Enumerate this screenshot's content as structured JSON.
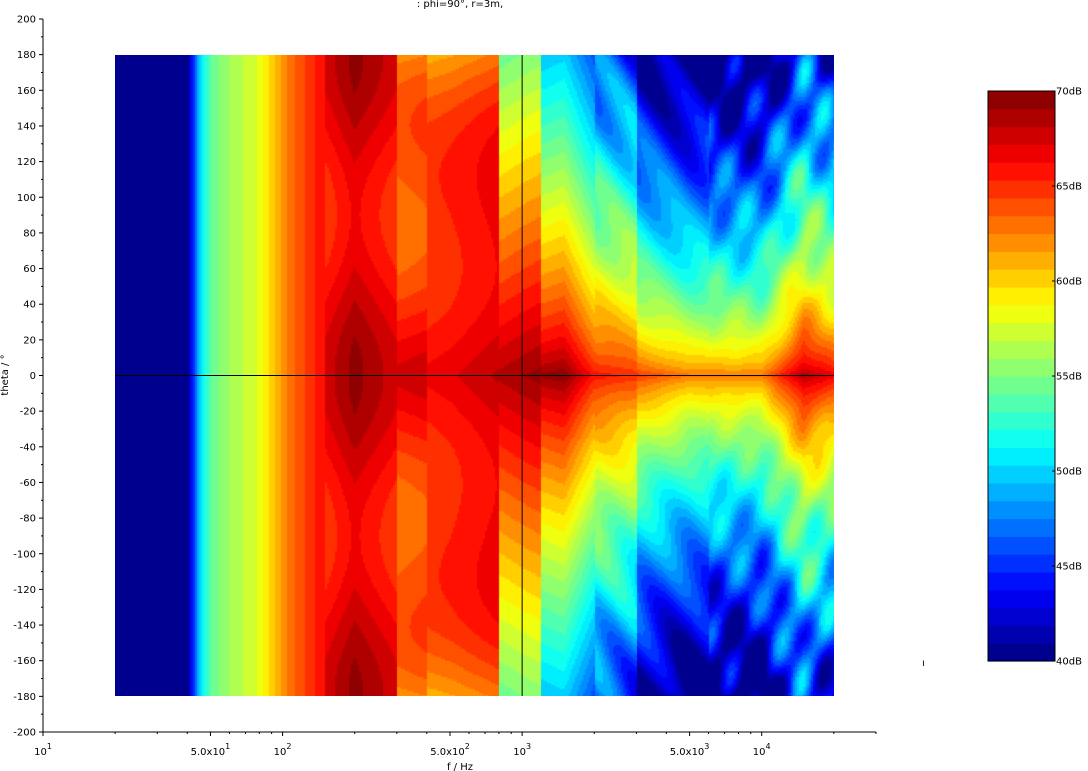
{
  "chart_data": {
    "type": "heatmap",
    "title": ": phi=90°, r=3m,",
    "xlabel": "f / Hz",
    "ylabel": "theta / °",
    "x_scale": "log",
    "xlim": [
      10,
      30000
    ],
    "ylim": [
      -200,
      200
    ],
    "data_x_range": [
      20,
      20000
    ],
    "data_y_range": [
      -180,
      180
    ],
    "y_ticks": [
      -200,
      -180,
      -160,
      -140,
      -120,
      -100,
      -80,
      -60,
      -40,
      -20,
      0,
      20,
      40,
      60,
      80,
      100,
      120,
      140,
      160,
      180,
      200
    ],
    "x_ticks": [
      {
        "value": 10,
        "base": "10",
        "exp": "1"
      },
      {
        "value": 50,
        "base": "5.0x10",
        "exp": "1"
      },
      {
        "value": 100,
        "base": "10",
        "exp": "2"
      },
      {
        "value": 500,
        "base": "5.0x10",
        "exp": "2"
      },
      {
        "value": 1000,
        "base": "10",
        "exp": "3"
      },
      {
        "value": 5000,
        "base": "5.0x10",
        "exp": "3"
      },
      {
        "value": 10000,
        "base": "10",
        "exp": "4"
      }
    ],
    "crosshair": {
      "x": 1000,
      "y": 0
    },
    "colorbar": {
      "min": 40,
      "max": 70,
      "unit": "dB",
      "levels": 32,
      "tick_labels": [
        "70dB",
        "65dB",
        "60dB",
        "55dB",
        "50dB",
        "45dB",
        "40dB"
      ],
      "tick_values": [
        70,
        65,
        60,
        55,
        50,
        45,
        40
      ]
    },
    "level_profile_on_axis": [
      {
        "f": 20,
        "db": 40
      },
      {
        "f": 40,
        "db": 40
      },
      {
        "f": 45,
        "db": 50
      },
      {
        "f": 50,
        "db": 54
      },
      {
        "f": 60,
        "db": 56
      },
      {
        "f": 80,
        "db": 58
      },
      {
        "f": 100,
        "db": 62
      },
      {
        "f": 130,
        "db": 65
      },
      {
        "f": 200,
        "db": 68
      },
      {
        "f": 300,
        "db": 66
      },
      {
        "f": 500,
        "db": 67
      },
      {
        "f": 1000,
        "db": 69
      },
      {
        "f": 1500,
        "db": 70
      },
      {
        "f": 2000,
        "db": 66
      },
      {
        "f": 3000,
        "db": 65
      },
      {
        "f": 5000,
        "db": 63
      },
      {
        "f": 10000,
        "db": 63
      },
      {
        "f": 15000,
        "db": 69
      },
      {
        "f": 20000,
        "db": 67
      }
    ],
    "grid": false,
    "legend_position": "right"
  },
  "colors": {
    "jet_low": "#00008f",
    "jet_high": "#800000",
    "axis": "#000000",
    "background": "#ffffff"
  }
}
